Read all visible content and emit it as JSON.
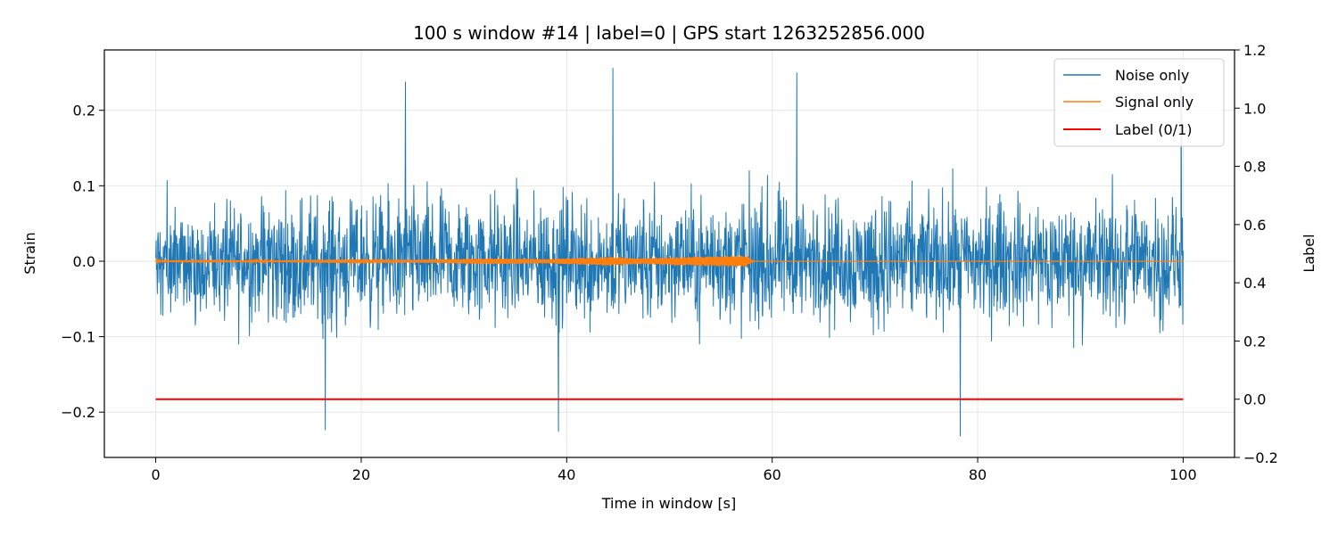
{
  "chart_data": {
    "type": "line",
    "title": "100 s window #14 | label=0 | GPS start 1263252856.000",
    "xlabel": "Time in window [s]",
    "ylabel": "Strain",
    "y2label": "Label",
    "xlim": [
      -5,
      105
    ],
    "ylim": [
      -0.26,
      0.28
    ],
    "y2lim": [
      -0.2,
      1.2
    ],
    "x_ticks": [
      0,
      20,
      40,
      60,
      80,
      100
    ],
    "x_tick_labels": [
      "0",
      "20",
      "40",
      "60",
      "80",
      "100"
    ],
    "y_ticks": [
      -0.2,
      -0.1,
      0.0,
      0.1,
      0.2
    ],
    "y_tick_labels": [
      "−0.2",
      "−0.1",
      "0.0",
      "0.1",
      "0.2"
    ],
    "y2_ticks": [
      -0.2,
      0.0,
      0.2,
      0.4,
      0.6,
      0.8,
      1.0,
      1.2
    ],
    "y2_tick_labels": [
      "−0.2",
      "0.0",
      "0.2",
      "0.4",
      "0.6",
      "0.8",
      "1.0",
      "1.2"
    ],
    "grid": true,
    "legend_position": "top-right",
    "series": [
      {
        "name": "Noise only",
        "color": "#1f77b4",
        "axis": "left",
        "x_range": [
          0,
          100
        ],
        "typical_amplitude": 0.12,
        "peaks": [
          {
            "x": 24.3,
            "y": 0.238
          },
          {
            "x": 44.5,
            "y": 0.256
          },
          {
            "x": 62.4,
            "y": 0.25
          },
          {
            "x": 99.8,
            "y": 0.235
          },
          {
            "x": 39.2,
            "y": -0.226
          },
          {
            "x": 78.3,
            "y": -0.232
          },
          {
            "x": 16.5,
            "y": -0.224
          }
        ]
      },
      {
        "name": "Signal only",
        "color": "#ff7f0e",
        "axis": "left",
        "x_range": [
          0,
          100
        ],
        "envelope": [
          {
            "x": 0,
            "a": 0.001
          },
          {
            "x": 5,
            "a": 0.002
          },
          {
            "x": 10,
            "a": 0.001
          },
          {
            "x": 20,
            "a": 0.003
          },
          {
            "x": 25,
            "a": 0.002
          },
          {
            "x": 32,
            "a": 0.004
          },
          {
            "x": 38,
            "a": 0.003
          },
          {
            "x": 44,
            "a": 0.006
          },
          {
            "x": 47,
            "a": 0.004
          },
          {
            "x": 52,
            "a": 0.006
          },
          {
            "x": 57.5,
            "a": 0.008
          },
          {
            "x": 58.2,
            "a": 0.0
          },
          {
            "x": 100,
            "a": 0.0
          }
        ]
      },
      {
        "name": "Label (0/1)",
        "color": "#ff0000",
        "axis": "right",
        "x": [
          0,
          100
        ],
        "values": [
          0,
          0
        ]
      }
    ]
  }
}
